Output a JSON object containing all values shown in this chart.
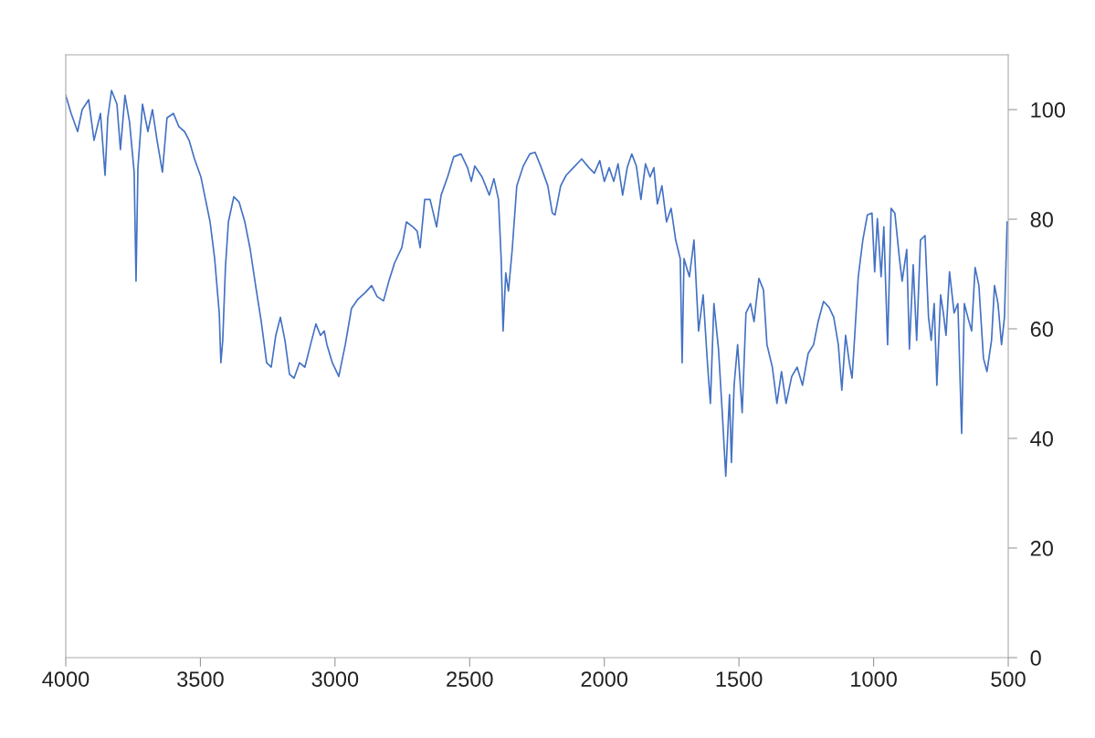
{
  "chart_data": {
    "type": "line",
    "color": "#4472c4",
    "x": [
      4000,
      3980,
      3956,
      3939,
      3915,
      3895,
      3871,
      3854,
      3844,
      3830,
      3810,
      3797,
      3780,
      3763,
      3746,
      3739,
      3732,
      3715,
      3695,
      3678,
      3661,
      3641,
      3624,
      3600,
      3580,
      3559,
      3542,
      3522,
      3498,
      3481,
      3464,
      3447,
      3430,
      3424,
      3417,
      3407,
      3396,
      3376,
      3356,
      3335,
      3315,
      3295,
      3274,
      3254,
      3237,
      3220,
      3203,
      3186,
      3169,
      3152,
      3132,
      3112,
      3091,
      3071,
      3054,
      3040,
      3030,
      3010,
      2986,
      2962,
      2939,
      2915,
      2888,
      2864,
      2844,
      2820,
      2800,
      2779,
      2752,
      2735,
      2711,
      2695,
      2684,
      2667,
      2647,
      2623,
      2606,
      2582,
      2559,
      2532,
      2508,
      2494,
      2481,
      2454,
      2427,
      2410,
      2393,
      2383,
      2376,
      2366,
      2356,
      2342,
      2325,
      2301,
      2277,
      2257,
      2234,
      2210,
      2193,
      2183,
      2162,
      2142,
      2115,
      2084,
      2057,
      2037,
      2017,
      2000,
      1982,
      1965,
      1949,
      1932,
      1915,
      1898,
      1881,
      1864,
      1847,
      1830,
      1816,
      1803,
      1786,
      1769,
      1752,
      1735,
      1718,
      1711,
      1704,
      1684,
      1667,
      1650,
      1633,
      1616,
      1606,
      1593,
      1576,
      1562,
      1549,
      1535,
      1528,
      1518,
      1505,
      1488,
      1474,
      1457,
      1444,
      1426,
      1409,
      1396,
      1376,
      1359,
      1342,
      1325,
      1304,
      1284,
      1264,
      1243,
      1223,
      1206,
      1186,
      1165,
      1148,
      1131,
      1118,
      1104,
      1090,
      1080,
      1070,
      1057,
      1040,
      1023,
      1006,
      996,
      986,
      972,
      962,
      948,
      935,
      921,
      904,
      894,
      877,
      867,
      853,
      840,
      826,
      809,
      796,
      786,
      775,
      765,
      751,
      741,
      731,
      718,
      701,
      687,
      673,
      663,
      650,
      636,
      623,
      609,
      592,
      579,
      562,
      551,
      538,
      525,
      514,
      504
    ],
    "values": [
      102.6,
      99.3,
      96,
      100,
      101.8,
      94.4,
      99.3,
      88,
      98.5,
      103.5,
      101,
      92.7,
      102.6,
      97.7,
      88.6,
      68.7,
      89.4,
      101,
      96,
      100,
      94.4,
      88.6,
      98.5,
      99.3,
      96.9,
      96,
      94.4,
      91,
      87.7,
      83.6,
      79.5,
      72.8,
      62.9,
      53.8,
      57.9,
      71.2,
      79.5,
      84.1,
      83.1,
      79.5,
      74.5,
      67.9,
      61.3,
      53.8,
      53,
      58.8,
      62.1,
      57.9,
      51.7,
      51,
      53.8,
      53,
      57.1,
      60.9,
      58.8,
      59.6,
      57.1,
      53.8,
      51.3,
      57.1,
      63.7,
      65.4,
      66.6,
      67.9,
      65.9,
      65.1,
      68.7,
      72,
      74.8,
      79.5,
      78.6,
      77.8,
      74.8,
      83.6,
      83.6,
      78.6,
      84.4,
      87.7,
      91.4,
      91.9,
      89.4,
      86.9,
      89.7,
      87.7,
      84.4,
      87.4,
      83.6,
      72.8,
      59.6,
      70.2,
      66.9,
      74.5,
      86.1,
      89.7,
      91.9,
      92.2,
      89.4,
      86.1,
      81.1,
      80.8,
      86.1,
      88,
      89.4,
      91,
      89.4,
      88.4,
      90.7,
      86.9,
      89.4,
      86.9,
      90.1,
      84.4,
      89.4,
      91.9,
      89.7,
      83.6,
      90.1,
      87.7,
      89.4,
      82.8,
      86.1,
      79.5,
      82,
      76.2,
      72.8,
      53.8,
      72.8,
      69.5,
      76.2,
      59.6,
      66.2,
      53,
      46.4,
      64.6,
      56.3,
      44.7,
      33.1,
      48,
      35.6,
      49.7,
      57.1,
      44.7,
      62.9,
      64.6,
      61.3,
      69.2,
      67.1,
      57.1,
      53,
      46.4,
      52.2,
      46.4,
      51.3,
      53,
      49.7,
      55.5,
      57.1,
      61.3,
      65,
      63.9,
      62.1,
      57.1,
      48.8,
      58.8,
      53.8,
      51,
      58.8,
      69.5,
      76.2,
      80.8,
      81.1,
      70.4,
      80.1,
      69.5,
      78.6,
      57.1,
      82,
      81.1,
      72.8,
      68.7,
      74.5,
      56.3,
      71.7,
      57.9,
      76.2,
      77,
      62.1,
      57.9,
      64.6,
      49.7,
      66.2,
      62.9,
      58.8,
      70.4,
      62.9,
      64.6,
      40.9,
      64.6,
      62.1,
      59.6,
      71.2,
      67.9,
      54.6,
      52.2,
      57.9,
      67.9,
      64.6,
      57.1,
      62.1,
      79.5
    ],
    "xlim": [
      4000,
      500
    ],
    "xticks": [
      4000,
      3500,
      3000,
      2500,
      2000,
      1500,
      1000,
      500
    ],
    "ylim": [
      0,
      110
    ],
    "yticks": [
      0,
      20,
      40,
      60,
      80,
      100
    ],
    "grid": false,
    "legend": false
  }
}
